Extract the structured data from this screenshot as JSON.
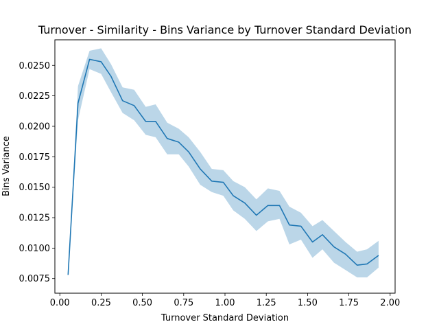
{
  "chart_data": {
    "type": "line",
    "title": "Turnover - Similarity - Bins Variance by Turnover Standard Deviation",
    "xlabel": "Turnover Standard Deviation",
    "ylabel": "Bins Variance",
    "xlim": [
      -0.03,
      2.03
    ],
    "ylim": [
      0.0063,
      0.0271
    ],
    "xticks": [
      0.0,
      0.25,
      0.5,
      0.75,
      1.0,
      1.25,
      1.5,
      1.75,
      2.0
    ],
    "xtick_labels": [
      "0.00",
      "0.25",
      "0.50",
      "0.75",
      "1.00",
      "1.25",
      "1.50",
      "1.75",
      "2.00"
    ],
    "yticks": [
      0.0075,
      0.01,
      0.0125,
      0.015,
      0.0175,
      0.02,
      0.0225,
      0.025
    ],
    "ytick_labels": [
      "0.0075",
      "0.0100",
      "0.0125",
      "0.0150",
      "0.0175",
      "0.0200",
      "0.0225",
      "0.0250"
    ],
    "grid": false,
    "colors": {
      "line": "#1f77b4",
      "band": "#1f77b4",
      "band_opacity": 0.3
    },
    "series": [
      {
        "x": [
          0.05,
          0.11,
          0.18,
          0.25,
          0.31,
          0.38,
          0.45,
          0.52,
          0.58,
          0.65,
          0.72,
          0.78,
          0.85,
          0.92,
          0.99,
          1.05,
          1.12,
          1.19,
          1.26,
          1.33,
          1.39,
          1.46,
          1.53,
          1.59,
          1.66,
          1.73,
          1.8,
          1.86,
          1.93
        ],
        "y": [
          0.0078,
          0.0219,
          0.0255,
          0.0253,
          0.0241,
          0.0221,
          0.0217,
          0.0204,
          0.0204,
          0.019,
          0.0187,
          0.0179,
          0.0165,
          0.0155,
          0.0154,
          0.0143,
          0.0137,
          0.0127,
          0.0135,
          0.0135,
          0.0119,
          0.0118,
          0.0105,
          0.0111,
          0.0101,
          0.0095,
          0.0086,
          0.0087,
          0.0094
        ],
        "lower": [
          0.0078,
          0.0205,
          0.0247,
          0.0243,
          0.0228,
          0.0211,
          0.0205,
          0.0193,
          0.0191,
          0.0177,
          0.0177,
          0.0167,
          0.0152,
          0.0146,
          0.0143,
          0.0131,
          0.0124,
          0.0114,
          0.0122,
          0.0124,
          0.0103,
          0.0107,
          0.0092,
          0.0099,
          0.0088,
          0.0082,
          0.0076,
          0.0076,
          0.0084
        ],
        "upper": [
          0.0078,
          0.0233,
          0.0262,
          0.0264,
          0.0251,
          0.0232,
          0.023,
          0.0216,
          0.0218,
          0.0203,
          0.0198,
          0.0191,
          0.0179,
          0.0165,
          0.0164,
          0.0155,
          0.015,
          0.014,
          0.0149,
          0.0147,
          0.0134,
          0.0129,
          0.0118,
          0.0123,
          0.0114,
          0.0105,
          0.0097,
          0.0099,
          0.0106
        ]
      }
    ]
  }
}
